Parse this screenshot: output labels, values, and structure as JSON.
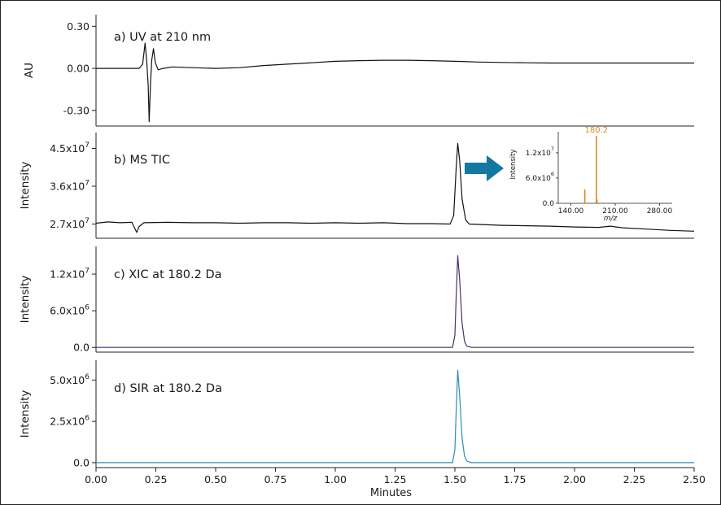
{
  "chart_data": {
    "type": "line",
    "xlabel": "Minutes",
    "xlim": [
      0.0,
      2.5
    ],
    "xticks": [
      "0.00",
      "0.25",
      "0.50",
      "0.75",
      "1.00",
      "1.25",
      "1.50",
      "1.75",
      "2.00",
      "2.25",
      "2.50"
    ],
    "panels": [
      {
        "id": "uv",
        "label": "a)  UV at 210 nm",
        "ylabel": "AU",
        "ylim": [
          -0.4,
          0.36
        ],
        "yticks": [
          {
            "v": 0.3,
            "t": "0.30"
          },
          {
            "v": 0.0,
            "t": "0.00"
          },
          {
            "v": -0.3,
            "t": "-0.30"
          }
        ],
        "color": "#111111",
        "series": {
          "points": [
            [
              0.0,
              0.0
            ],
            [
              0.18,
              0.0
            ],
            [
              0.195,
              0.03
            ],
            [
              0.205,
              0.18
            ],
            [
              0.212,
              0.05
            ],
            [
              0.218,
              -0.12
            ],
            [
              0.222,
              -0.38
            ],
            [
              0.228,
              -0.1
            ],
            [
              0.233,
              0.06
            ],
            [
              0.24,
              0.14
            ],
            [
              0.248,
              0.04
            ],
            [
              0.26,
              -0.01
            ],
            [
              0.28,
              0.0
            ],
            [
              0.32,
              0.01
            ],
            [
              0.4,
              0.005
            ],
            [
              0.5,
              0.0
            ],
            [
              0.6,
              0.005
            ],
            [
              0.7,
              0.02
            ],
            [
              0.8,
              0.03
            ],
            [
              0.9,
              0.04
            ],
            [
              1.0,
              0.05
            ],
            [
              1.1,
              0.055
            ],
            [
              1.2,
              0.058
            ],
            [
              1.3,
              0.058
            ],
            [
              1.4,
              0.055
            ],
            [
              1.5,
              0.05
            ],
            [
              1.6,
              0.045
            ],
            [
              1.7,
              0.042
            ],
            [
              1.8,
              0.04
            ],
            [
              1.9,
              0.038
            ],
            [
              2.0,
              0.038
            ],
            [
              2.2,
              0.038
            ],
            [
              2.4,
              0.038
            ],
            [
              2.5,
              0.038
            ]
          ]
        }
      },
      {
        "id": "tic",
        "label": "b)  MS TIC",
        "ylabel": "Intensity",
        "ylim": [
          24000000.0,
          48000000.0
        ],
        "yticks": [
          {
            "v": 27000000.0,
            "b": "2.7x10",
            "e": "7"
          },
          {
            "v": 36000000.0,
            "b": "3.6x10",
            "e": "7"
          },
          {
            "v": 45000000.0,
            "b": "4.5x10",
            "e": "7"
          }
        ],
        "color": "#111111",
        "series": {
          "points": [
            [
              0.0,
              27200000.0
            ],
            [
              0.05,
              27500000.0
            ],
            [
              0.1,
              27300000.0
            ],
            [
              0.15,
              27400000.0
            ],
            [
              0.16,
              26200000.0
            ],
            [
              0.17,
              25000000.0
            ],
            [
              0.18,
              26400000.0
            ],
            [
              0.2,
              27300000.0
            ],
            [
              0.3,
              27400000.0
            ],
            [
              0.4,
              27300000.0
            ],
            [
              0.5,
              27300000.0
            ],
            [
              0.6,
              27200000.0
            ],
            [
              0.7,
              27300000.0
            ],
            [
              0.8,
              27300000.0
            ],
            [
              0.9,
              27200000.0
            ],
            [
              1.0,
              27300000.0
            ],
            [
              1.1,
              27200000.0
            ],
            [
              1.2,
              27300000.0
            ],
            [
              1.3,
              27100000.0
            ],
            [
              1.4,
              27100000.0
            ],
            [
              1.48,
              27000000.0
            ],
            [
              1.495,
              29000000.0
            ],
            [
              1.505,
              40000000.0
            ],
            [
              1.512,
              46200000.0
            ],
            [
              1.52,
              42000000.0
            ],
            [
              1.53,
              33000000.0
            ],
            [
              1.545,
              28000000.0
            ],
            [
              1.56,
              27000000.0
            ],
            [
              1.6,
              26900000.0
            ],
            [
              1.7,
              26700000.0
            ],
            [
              1.8,
              26600000.0
            ],
            [
              1.9,
              26500000.0
            ],
            [
              2.0,
              26300000.0
            ],
            [
              2.1,
              26200000.0
            ],
            [
              2.15,
              26500000.0
            ],
            [
              2.2,
              26100000.0
            ],
            [
              2.3,
              25800000.0
            ],
            [
              2.4,
              25500000.0
            ],
            [
              2.5,
              25300000.0
            ]
          ]
        },
        "inset": {
          "type": "bar",
          "ylabel": "Intensity",
          "xlabel": "m/z",
          "xlim": [
            120,
            300
          ],
          "xticks": [
            "140.00",
            "210.00",
            "280.00"
          ],
          "xtick_values": [
            140,
            210,
            280
          ],
          "ylim": [
            0,
            17000000.0
          ],
          "yticks": [
            {
              "v": 0,
              "t": "0.0"
            },
            {
              "v": 6000000.0,
              "b": "6.0x10",
              "e": "6"
            },
            {
              "v": 12000000.0,
              "b": "1.2x10",
              "e": "7"
            }
          ],
          "peak_label": "180.2",
          "color": "#e08a20",
          "bars": [
            [
              162.0,
              3300000.0
            ],
            [
              180.2,
              16000000.0
            ],
            [
              181.2,
              900000.0
            ]
          ]
        }
      },
      {
        "id": "xic",
        "label": "c)  XIC at 180.2 Da",
        "ylabel": "Intensity",
        "ylim": [
          -500000.0,
          16000000.0
        ],
        "yticks": [
          {
            "v": 0,
            "t": "0.0"
          },
          {
            "v": 6000000.0,
            "b": "6.0x10",
            "e": "6"
          },
          {
            "v": 12000000.0,
            "b": "1.2x10",
            "e": "7"
          }
        ],
        "color": "#4b2e6e",
        "series": {
          "points": [
            [
              0.0,
              0.0
            ],
            [
              1.49,
              0.0
            ],
            [
              1.5,
              2000000.0
            ],
            [
              1.505,
              8000000.0
            ],
            [
              1.512,
              15000000.0
            ],
            [
              1.52,
              11000000.0
            ],
            [
              1.53,
              4000000.0
            ],
            [
              1.54,
              1000000.0
            ],
            [
              1.55,
              200000.0
            ],
            [
              1.57,
              0.0
            ],
            [
              2.5,
              0.0
            ]
          ]
        }
      },
      {
        "id": "sir",
        "label": "d)  SIR at 180.2 Da",
        "ylabel": "Intensity",
        "ylim": [
          -200000.0,
          6000000.0
        ],
        "yticks": [
          {
            "v": 0,
            "t": "0.0"
          },
          {
            "v": 2500000.0,
            "b": "2.5x10",
            "e": "6"
          },
          {
            "v": 5000000.0,
            "b": "5.0x10",
            "e": "6"
          }
        ],
        "color": "#2a8fb0",
        "series": {
          "points": [
            [
              0.0,
              0.0
            ],
            [
              1.49,
              0.0
            ],
            [
              1.5,
              800000.0
            ],
            [
              1.505,
              3000000.0
            ],
            [
              1.512,
              5600000.0
            ],
            [
              1.52,
              4000000.0
            ],
            [
              1.53,
              1500000.0
            ],
            [
              1.54,
              400000.0
            ],
            [
              1.55,
              100000.0
            ],
            [
              1.57,
              0.0
            ],
            [
              2.5,
              0.0
            ]
          ]
        }
      }
    ],
    "arrow_color": "#1479a0"
  }
}
